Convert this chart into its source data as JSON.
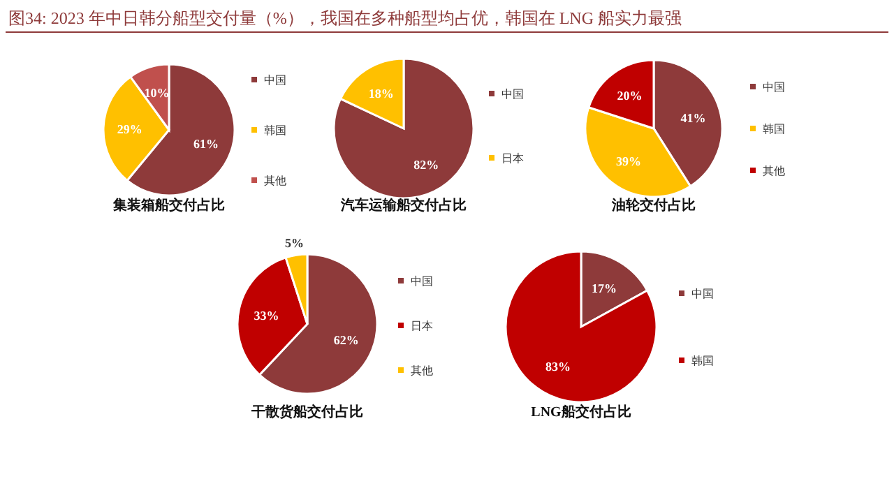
{
  "chart_data": [
    {
      "type": "pie",
      "title": "集装箱船交付占比",
      "annotations": [
        "图34:   2023 年中日韩分船型交付量（%），我国在多种船型均占优，韩国在 LNG 船实力最强"
      ],
      "categories": [
        "中国",
        "韩国",
        "其他"
      ],
      "values": [
        61,
        29,
        10
      ],
      "value_labels": [
        "61%",
        "29%",
        "10%"
      ],
      "colors": [
        "#8e3a3a",
        "#ffc000",
        "#c0504d"
      ],
      "legend": "right"
    },
    {
      "type": "pie",
      "title": "汽车运输船交付占比",
      "categories": [
        "中国",
        "日本"
      ],
      "values": [
        82,
        18
      ],
      "value_labels": [
        "82%",
        "18%"
      ],
      "colors": [
        "#8e3a3a",
        "#ffc000"
      ],
      "legend": "right"
    },
    {
      "type": "pie",
      "title": "油轮交付占比",
      "categories": [
        "中国",
        "韩国",
        "其他"
      ],
      "values": [
        41,
        39,
        20
      ],
      "value_labels": [
        "41%",
        "39%",
        "20%"
      ],
      "colors": [
        "#8e3a3a",
        "#ffc000",
        "#c00000"
      ],
      "legend": "right"
    },
    {
      "type": "pie",
      "title": "干散货船交付占比",
      "categories": [
        "中国",
        "日本",
        "其他"
      ],
      "values": [
        62,
        33,
        5
      ],
      "value_labels": [
        "62%",
        "33%",
        "5%"
      ],
      "colors": [
        "#8e3a3a",
        "#c00000",
        "#ffc000"
      ],
      "legend": "right"
    },
    {
      "type": "pie",
      "title": "LNG船交付占比",
      "categories": [
        "中国",
        "韩国"
      ],
      "values": [
        17,
        83
      ],
      "value_labels": [
        "17%",
        "83%"
      ],
      "colors": [
        "#8e3a3a",
        "#c00000"
      ],
      "legend": "right"
    }
  ]
}
